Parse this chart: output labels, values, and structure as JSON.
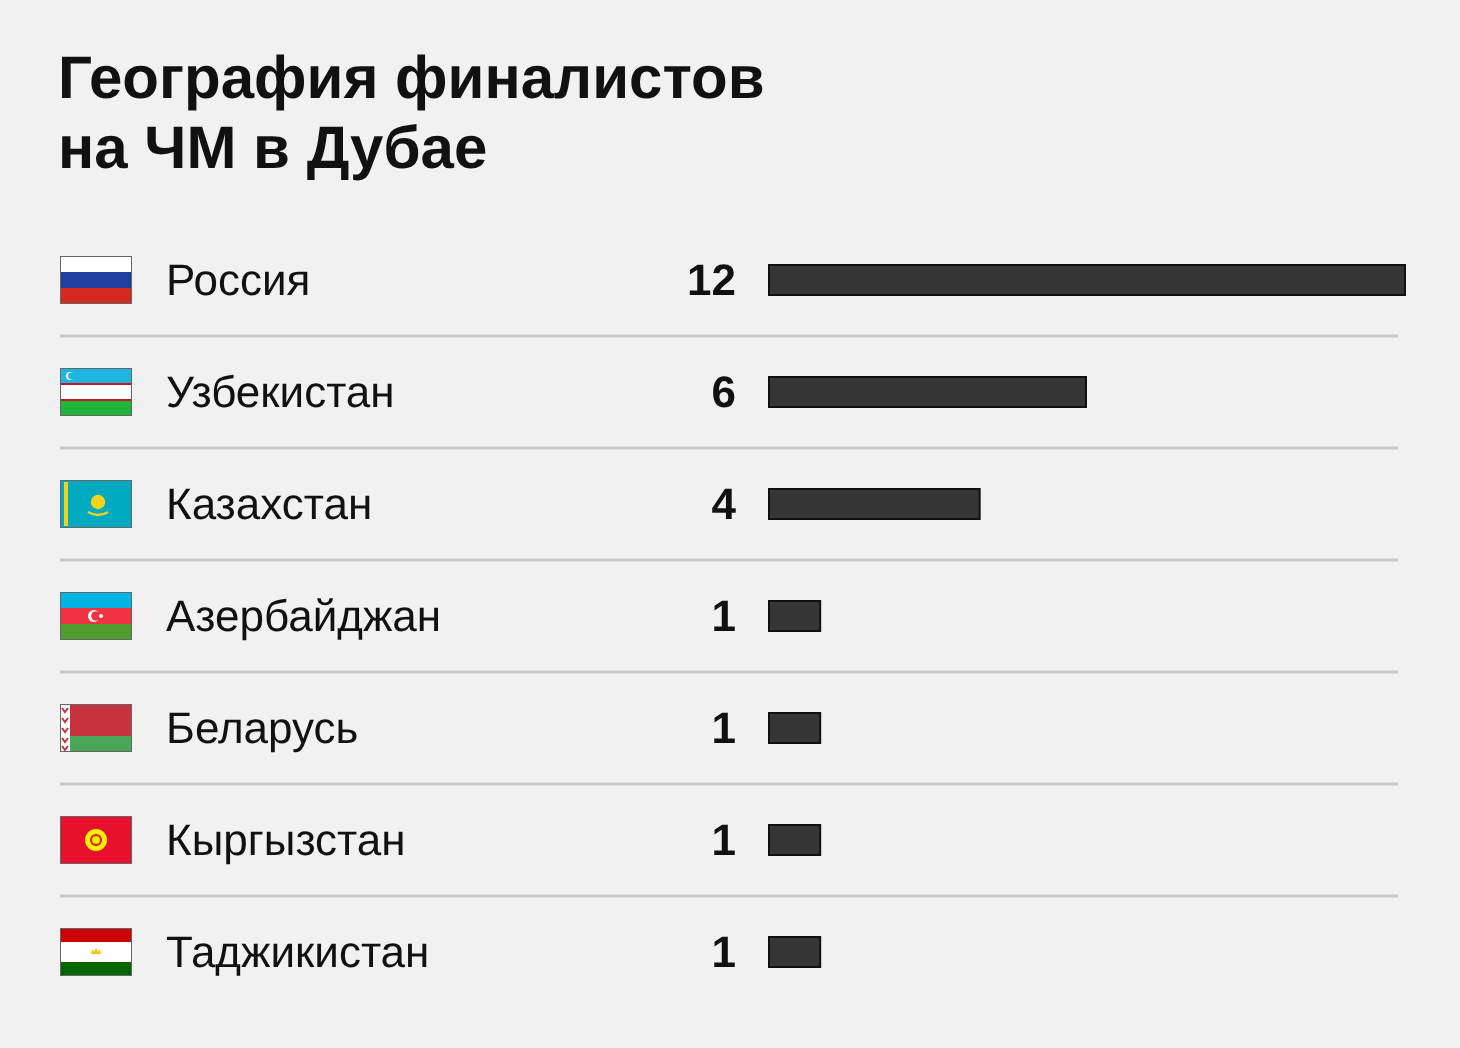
{
  "chart_data": {
    "type": "bar",
    "orientation": "horizontal",
    "title": "География финалистов на ЧМ в Дубае",
    "categories": [
      "Россия",
      "Узбекистан",
      "Казахстан",
      "Азербайджан",
      "Беларусь",
      "Кыргызстан",
      "Таджикистан"
    ],
    "values": [
      12,
      6,
      4,
      1,
      1,
      1,
      1
    ],
    "color": "#363636",
    "data_labels": true,
    "grid": "y",
    "tick_labels": "y"
  }
}
